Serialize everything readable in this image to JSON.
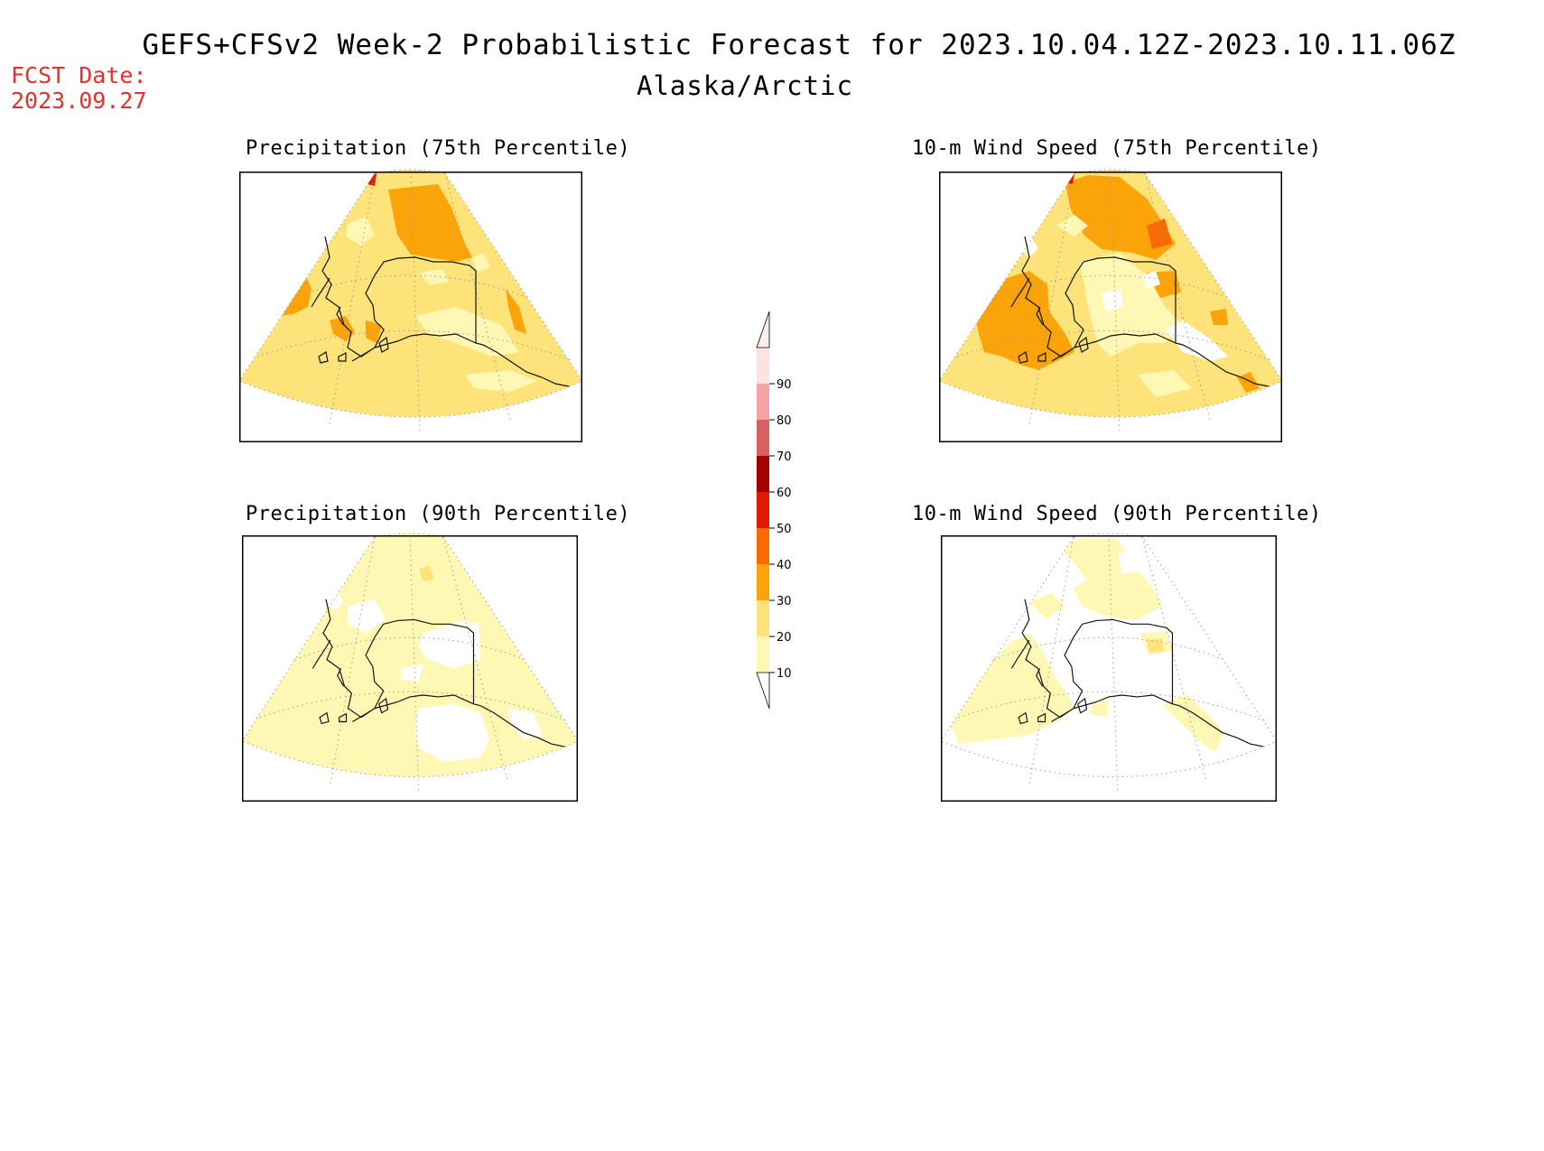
{
  "header": {
    "title": "GEFS+CFSv2 Week-2 Probabilistic Forecast for 2023.10.04.12Z-2023.10.11.06Z",
    "region": "Alaska/Arctic",
    "fcst_label": "FCST Date:",
    "fcst_date": "2023.09.27"
  },
  "colors": {
    "title_red": "#e8302a",
    "bins": [
      "#ffffff",
      "#fff8b4",
      "#fde37a",
      "#fba40a",
      "#f86b00",
      "#e01a00",
      "#a50000",
      "#d86060",
      "#f4a4a4",
      "#fde2e2"
    ]
  },
  "panels": [
    {
      "id": "precip-75",
      "title": "Precipitation (75th Percentile)",
      "dominant_bin": "20-30"
    },
    {
      "id": "wind-75",
      "title": "10-m Wind Speed (75th Percentile)",
      "dominant_bin": "20-30"
    },
    {
      "id": "precip-90",
      "title": "Precipitation (90th Percentile)",
      "dominant_bin": "10-20"
    },
    {
      "id": "wind-90",
      "title": "10-m Wind Speed (90th Percentile)",
      "dominant_bin": "0-10"
    }
  ],
  "legend": {
    "labels": [
      "10",
      "20",
      "30",
      "40",
      "50",
      "60",
      "70",
      "80",
      "90"
    ]
  }
}
